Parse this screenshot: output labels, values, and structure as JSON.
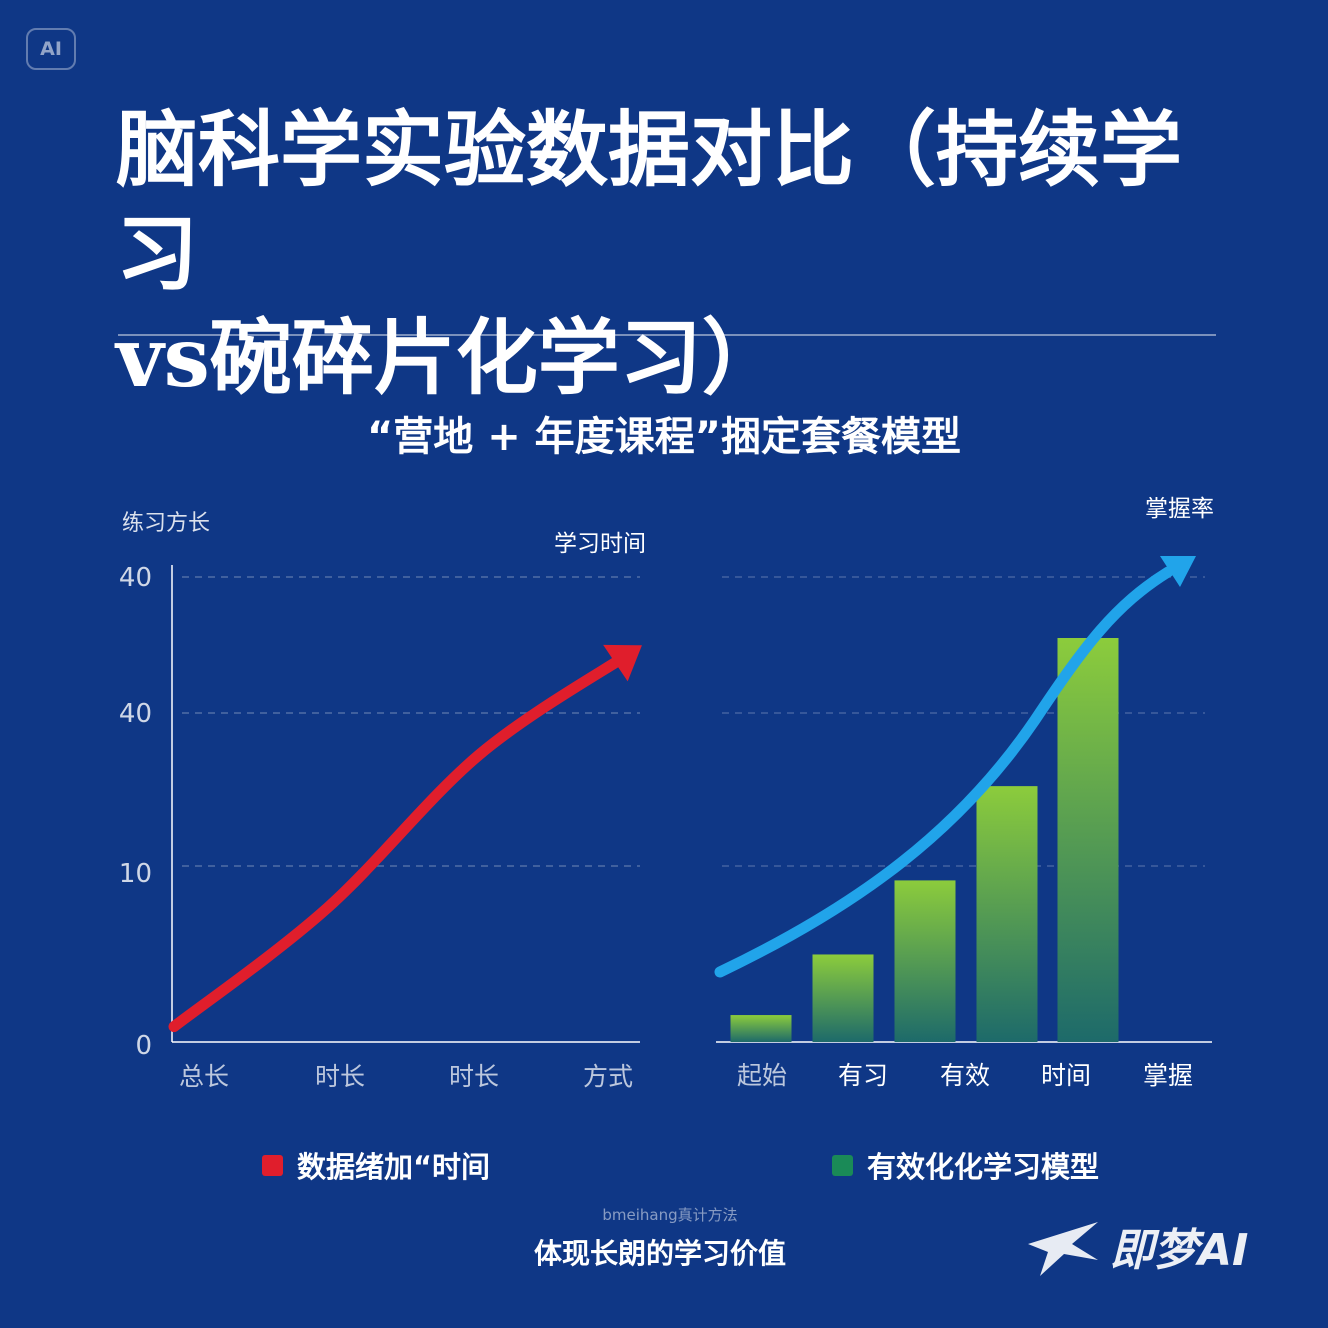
{
  "badge": "AI",
  "title_line1": "脑科学实验数据对比（持续学习",
  "title_line2": "vs碗碎片化学习）",
  "subtitle": "“营地 + 年度课程”捆定套餐模型",
  "colors": {
    "background": "#0f3786",
    "left_series": "#e01e2c",
    "right_arrow": "#21a4ea",
    "bar_top": "#8ccc3c",
    "bar_bottom": "#1d6a6a",
    "legend_right": "#1a8a57"
  },
  "chart_data": [
    {
      "type": "line",
      "axis_title": "练习方长",
      "annotation": "学习时间",
      "y_tick_labels": [
        "40",
        "40",
        "10",
        "0"
      ],
      "categories": [
        "总长",
        "时长",
        "时长",
        "方式"
      ],
      "ylim": [
        0,
        40
      ],
      "grid": true,
      "series": [
        {
          "name": "数据绪加“时间",
          "color": "#e01e2c",
          "x": [
            0,
            1,
            2,
            3
          ],
          "values": [
            1.5,
            13,
            28,
            38
          ]
        }
      ],
      "legend": "bottom"
    },
    {
      "type": "bar",
      "annotation": "掌握率",
      "categories": [
        "起始",
        "有习",
        "有效",
        "时间",
        "掌握"
      ],
      "values": [
        2,
        6.5,
        12,
        19,
        30
      ],
      "ylim": [
        0,
        40
      ],
      "grid": true,
      "trend_arrow": true,
      "series": [
        {
          "name": "有效化化学习模型",
          "color": "#1a8a57"
        }
      ],
      "legend": "bottom"
    }
  ],
  "footnote": "bmeihang真计方法",
  "caption": "体现长朗的学习价值",
  "brand": "即梦AI"
}
